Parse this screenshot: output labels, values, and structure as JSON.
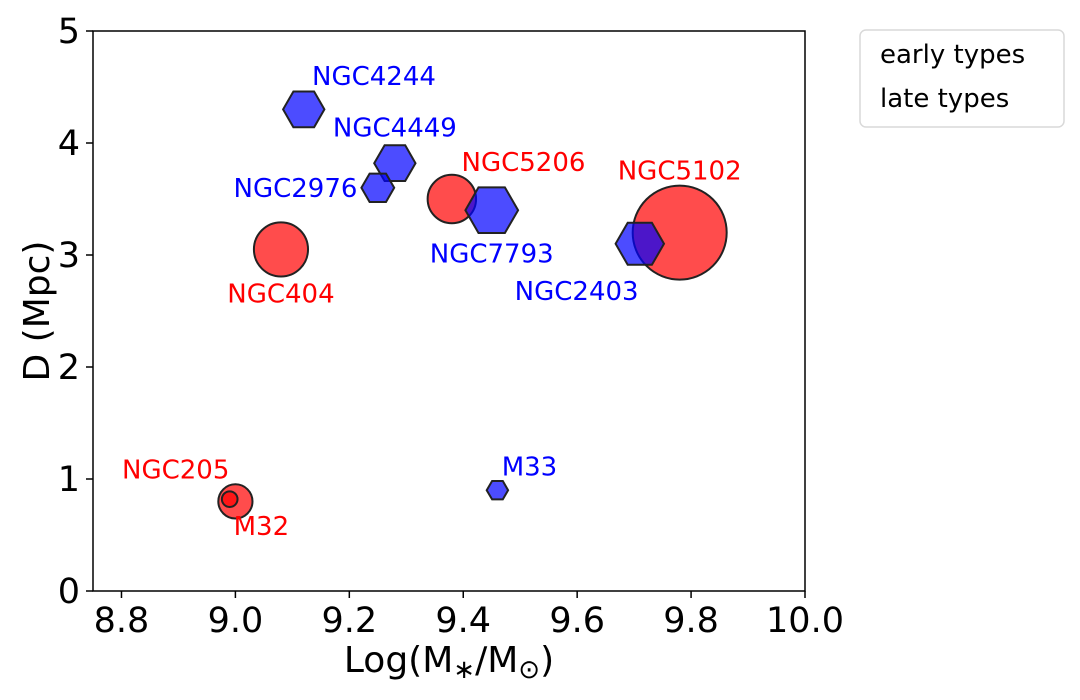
{
  "chart_data": {
    "type": "scatter",
    "title": "",
    "xlabel": "Log(M",
    "xlabel_sub1": "∗",
    "xlabel_mid": "/M",
    "xlabel_sub2": "⊙",
    "xlabel_end": ")",
    "ylabel": "D (Mpc)",
    "xlim": [
      8.75,
      10.0
    ],
    "ylim": [
      0,
      5
    ],
    "xticks": [
      8.8,
      9.0,
      9.2,
      9.4,
      9.6,
      9.8,
      10.0
    ],
    "xtick_labels": [
      "8.8",
      "9.0",
      "9.2",
      "9.4",
      "9.6",
      "9.8",
      "10.0"
    ],
    "yticks": [
      0,
      1,
      2,
      3,
      4,
      5
    ],
    "ytick_labels": [
      "0",
      "1",
      "2",
      "3",
      "4",
      "5"
    ],
    "legend": {
      "location": "outside-top-right",
      "entries": [
        "early types",
        "late types"
      ]
    },
    "series": [
      {
        "name": "early types",
        "marker": "circle",
        "color": "#ff0000",
        "points": [
          {
            "label": "NGC205",
            "x": 9.0,
            "y": 0.8,
            "size": 0.024
          },
          {
            "label": "M32",
            "x": 8.99,
            "y": 0.82,
            "size": 0.011
          },
          {
            "label": "NGC404",
            "x": 9.08,
            "y": 3.05,
            "size": 0.038
          },
          {
            "label": "NGC5206",
            "x": 9.38,
            "y": 3.5,
            "size": 0.034
          },
          {
            "label": "NGC5102",
            "x": 9.78,
            "y": 3.2,
            "size": 0.066
          }
        ]
      },
      {
        "name": "late types",
        "marker": "hexagon",
        "color": "#0000ff",
        "points": [
          {
            "label": "NGC4244",
            "x": 9.12,
            "y": 4.3,
            "size": 0.029
          },
          {
            "label": "NGC4449",
            "x": 9.28,
            "y": 3.82,
            "size": 0.029
          },
          {
            "label": "NGC2976",
            "x": 9.25,
            "y": 3.6,
            "size": 0.023
          },
          {
            "label": "NGC7793",
            "x": 9.45,
            "y": 3.4,
            "size": 0.037
          },
          {
            "label": "NGC2403",
            "x": 9.71,
            "y": 3.1,
            "size": 0.034
          },
          {
            "label": "M33",
            "x": 9.46,
            "y": 0.9,
            "size": 0.015
          }
        ]
      }
    ],
    "annotations": [
      {
        "text": "NGC4244",
        "color": "#0000ff",
        "anchor": "NGC4244",
        "pos": "upper-right"
      },
      {
        "text": "NGC4449",
        "color": "#0000ff",
        "anchor": "NGC4449",
        "pos": "above"
      },
      {
        "text": "NGC2976",
        "color": "#0000ff",
        "anchor": "NGC2976",
        "pos": "left"
      },
      {
        "text": "NGC5206",
        "color": "#ff0000",
        "anchor": "NGC5206",
        "pos": "upper-right"
      },
      {
        "text": "NGC5102",
        "color": "#ff0000",
        "anchor": "NGC5102",
        "pos": "above"
      },
      {
        "text": "NGC7793",
        "color": "#0000ff",
        "anchor": "NGC7793",
        "pos": "below"
      },
      {
        "text": "NGC2403",
        "color": "#0000ff",
        "anchor": "NGC2403",
        "pos": "below-left"
      },
      {
        "text": "NGC404",
        "color": "#ff0000",
        "anchor": "NGC404",
        "pos": "below"
      },
      {
        "text": "NGC205",
        "color": "#ff0000",
        "anchor": "NGC205",
        "pos": "upper-left"
      },
      {
        "text": "M32",
        "color": "#ff0000",
        "anchor": "M32",
        "pos": "lower-right"
      },
      {
        "text": "M33",
        "color": "#0000ff",
        "anchor": "M33",
        "pos": "upper-right"
      }
    ]
  }
}
